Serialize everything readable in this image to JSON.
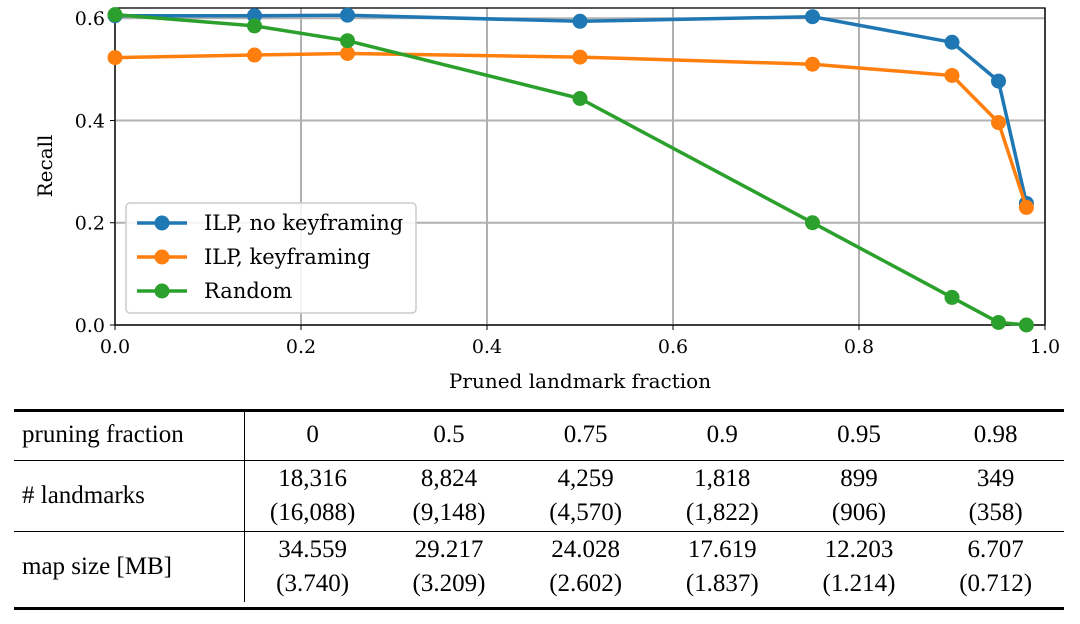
{
  "chart_data": {
    "type": "line",
    "xlabel": "Pruned landmark fraction",
    "ylabel": "Recall",
    "xlim": [
      0.0,
      1.0
    ],
    "ylim": [
      0.0,
      0.62
    ],
    "xticks": [
      "0.0",
      "0.2",
      "0.4",
      "0.6",
      "0.8",
      "1.0"
    ],
    "yticks": [
      "0.0",
      "0.2",
      "0.4",
      "0.6"
    ],
    "grid": true,
    "legend_position": "lower-left",
    "series": [
      {
        "name": "ILP, no keyframing",
        "color": "#1f77b4",
        "x": [
          0.0,
          0.15,
          0.25,
          0.5,
          0.75,
          0.9,
          0.95,
          0.98
        ],
        "y": [
          0.605,
          0.605,
          0.606,
          0.594,
          0.603,
          0.553,
          0.477,
          0.238
        ]
      },
      {
        "name": "ILP, keyframing",
        "color": "#ff7f0e",
        "x": [
          0.0,
          0.15,
          0.25,
          0.5,
          0.75,
          0.9,
          0.95,
          0.98
        ],
        "y": [
          0.523,
          0.528,
          0.531,
          0.524,
          0.51,
          0.488,
          0.396,
          0.23
        ]
      },
      {
        "name": "Random",
        "color": "#2ca02c",
        "x": [
          0.0,
          0.15,
          0.25,
          0.5,
          0.75,
          0.9,
          0.95,
          0.98
        ],
        "y": [
          0.607,
          0.585,
          0.556,
          0.443,
          0.2,
          0.054,
          0.005,
          0.0
        ]
      }
    ]
  },
  "table": {
    "header_label": "pruning fraction",
    "columns": [
      "0",
      "0.5",
      "0.75",
      "0.9",
      "0.95",
      "0.98"
    ],
    "rows": [
      {
        "label": "# landmarks",
        "values": [
          "18,316",
          "8,824",
          "4,259",
          "1,818",
          "899",
          "349"
        ],
        "sub_values": [
          "(16,088)",
          "(9,148)",
          "(4,570)",
          "(1,822)",
          "(906)",
          "(358)"
        ]
      },
      {
        "label": "map size [MB]",
        "values": [
          "34.559",
          "29.217",
          "24.028",
          "17.619",
          "12.203",
          "6.707"
        ],
        "sub_values": [
          "(3.740)",
          "(3.209)",
          "(2.602)",
          "(1.837)",
          "(1.214)",
          "(0.712)"
        ]
      }
    ]
  }
}
